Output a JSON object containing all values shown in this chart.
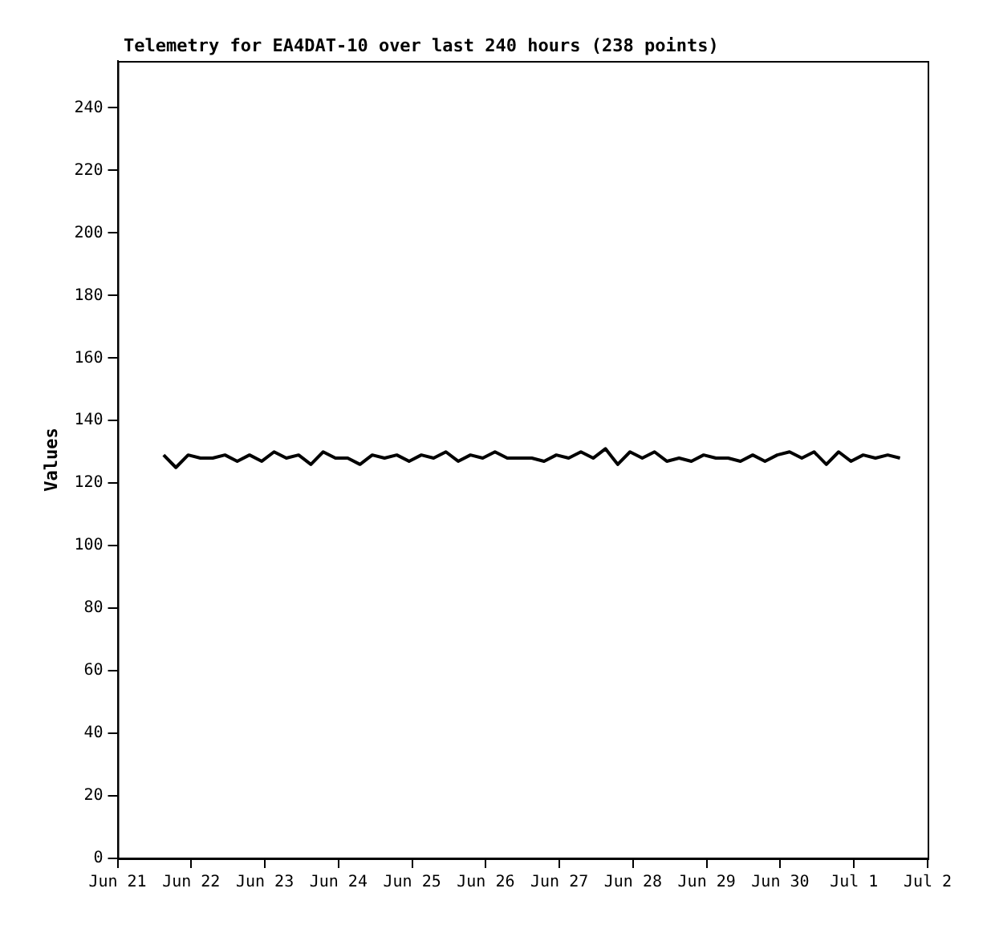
{
  "chart_data": {
    "type": "line",
    "title": "Telemetry for EA4DAT-10 over last 240 hours (238 points)",
    "ylabel": "Values",
    "x": [
      "--06-21T15:00",
      "--06-21T19:00",
      "--06-21T23:00",
      "--06-22T03:00",
      "--06-22T07:00",
      "--06-22T11:00",
      "--06-22T15:00",
      "--06-22T19:00",
      "--06-22T23:00",
      "--06-23T03:00",
      "--06-23T07:00",
      "--06-23T11:00",
      "--06-23T15:00",
      "--06-23T19:00",
      "--06-23T23:00",
      "--06-24T03:00",
      "--06-24T07:00",
      "--06-24T11:00",
      "--06-24T15:00",
      "--06-24T19:00",
      "--06-24T23:00",
      "--06-25T03:00",
      "--06-25T07:00",
      "--06-25T11:00",
      "--06-25T15:00",
      "--06-25T19:00",
      "--06-25T23:00",
      "--06-26T03:00",
      "--06-26T07:00",
      "--06-26T11:00",
      "--06-26T15:00",
      "--06-26T19:00",
      "--06-26T23:00",
      "--06-27T03:00",
      "--06-27T07:00",
      "--06-27T11:00",
      "--06-27T15:00",
      "--06-27T19:00",
      "--06-27T23:00",
      "--06-28T03:00",
      "--06-28T07:00",
      "--06-28T11:00",
      "--06-28T15:00",
      "--06-28T19:00",
      "--06-28T23:00",
      "--06-29T03:00",
      "--06-29T07:00",
      "--06-29T11:00",
      "--06-29T15:00",
      "--06-29T19:00",
      "--06-29T23:00",
      "--06-30T03:00",
      "--06-30T07:00",
      "--06-30T11:00",
      "--06-30T15:00",
      "--06-30T19:00",
      "--06-30T23:00",
      "--07-01T03:00",
      "--07-01T07:00",
      "--07-01T11:00",
      "--07-01T15:00"
    ],
    "series": [
      {
        "color": "#000000",
        "values": [
          129,
          125,
          129,
          128,
          128,
          129,
          127,
          129,
          127,
          130,
          128,
          129,
          126,
          130,
          128,
          128,
          126,
          129,
          128,
          129,
          127,
          129,
          128,
          130,
          127,
          129,
          128,
          130,
          128,
          128,
          128,
          127,
          129,
          128,
          130,
          128,
          131,
          126,
          130,
          128,
          130,
          127,
          128,
          127,
          129,
          128,
          128,
          127,
          129,
          127,
          129,
          130,
          128,
          130,
          126,
          130,
          127,
          129,
          128,
          129,
          128
        ]
      }
    ],
    "xlim": [
      "--06-21",
      "--07-02"
    ],
    "xticks": [
      {
        "value": "--06-21",
        "label": "Jun 21"
      },
      {
        "value": "--06-22",
        "label": "Jun 22"
      },
      {
        "value": "--06-23",
        "label": "Jun 23"
      },
      {
        "value": "--06-24",
        "label": "Jun 24"
      },
      {
        "value": "--06-25",
        "label": "Jun 25"
      },
      {
        "value": "--06-26",
        "label": "Jun 26"
      },
      {
        "value": "--06-27",
        "label": "Jun 27"
      },
      {
        "value": "--06-28",
        "label": "Jun 28"
      },
      {
        "value": "--06-29",
        "label": "Jun 29"
      },
      {
        "value": "--06-30",
        "label": "Jun 30"
      },
      {
        "value": "--07-01",
        "label": "Jul 1"
      },
      {
        "value": "--07-02",
        "label": "Jul 2"
      }
    ],
    "ylim": [
      0,
      255
    ],
    "yticks": [
      0,
      20,
      40,
      60,
      80,
      100,
      120,
      140,
      160,
      180,
      200,
      220,
      240
    ],
    "grid": false,
    "legend": false,
    "marker": "none",
    "line_style": "solid"
  }
}
